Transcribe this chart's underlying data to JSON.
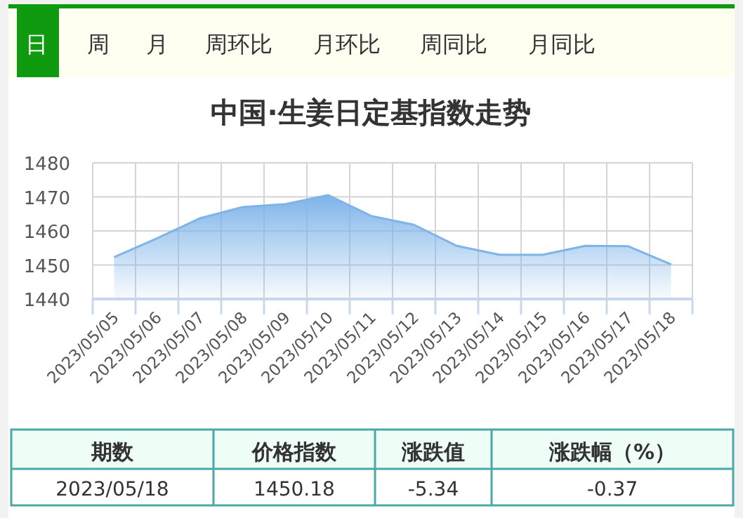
{
  "chart_data": {
    "type": "area",
    "title": "中国·生姜日定基指数走势",
    "categories": [
      "2023/05/05",
      "2023/05/06",
      "2023/05/07",
      "2023/05/08",
      "2023/05/09",
      "2023/05/10",
      "2023/05/11",
      "2023/05/12",
      "2023/05/13",
      "2023/05/14",
      "2023/05/15",
      "2023/05/16",
      "2023/05/17",
      "2023/05/18"
    ],
    "series": [
      {
        "color": "#7fb4e9",
        "values": [
          1452.3,
          1457.8,
          1463.7,
          1467.0,
          1467.9,
          1470.5,
          1464.4,
          1461.8,
          1455.6,
          1453.0,
          1453.0,
          1455.6,
          1455.5,
          1450.18
        ]
      }
    ],
    "ylim": [
      1440,
      1480
    ],
    "yticks": [
      1440,
      1450,
      1460,
      1470,
      1480
    ],
    "grid": true,
    "marker": "none",
    "annotations": [
      "日",
      "周",
      "月",
      "周环比",
      "月环比",
      "周同比",
      "月同比",
      "期数",
      "价格指数",
      "涨跌值",
      "涨跌幅（%）",
      "2023/05/18",
      "1450.18",
      "-5.34",
      "-0.37"
    ]
  }
}
